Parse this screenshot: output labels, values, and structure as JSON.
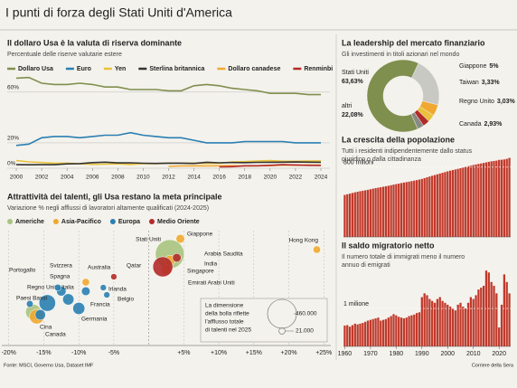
{
  "title": "I punti di forza degli Stati Uniti d'America",
  "source": "Fonte: MSCI, Governo Usa, Dataset IMF",
  "publisher": "Corriere della Sera",
  "chart_data": [
    {
      "type": "line",
      "title": "Il dollaro Usa è la valuta di riserva dominante",
      "subtitle": "Percentuale delle riserve valutarie estere",
      "x": [
        2000,
        2001,
        2002,
        2003,
        2004,
        2005,
        2006,
        2007,
        2008,
        2009,
        2010,
        2011,
        2012,
        2013,
        2014,
        2015,
        2016,
        2017,
        2018,
        2019,
        2020,
        2021,
        2022,
        2023,
        2024
      ],
      "xlim": [
        2000,
        2024
      ],
      "xticks": [
        2000,
        2002,
        2004,
        2006,
        2008,
        2010,
        2012,
        2014,
        2016,
        2018,
        2020,
        2022,
        2024
      ],
      "ylim": [
        0,
        72
      ],
      "yticks": [
        {
          "value": 0,
          "label": "0%"
        },
        {
          "value": 20,
          "label": "20%"
        },
        {
          "value": 60,
          "label": "60%"
        }
      ],
      "grid": true,
      "series": [
        {
          "name": "Dollaro Usa",
          "color": "#7f8f4e",
          "values": [
            71,
            71.5,
            67,
            66,
            66,
            67,
            66,
            64,
            64,
            62,
            62,
            62,
            61,
            61,
            65,
            66,
            65,
            63,
            62,
            61,
            59,
            59,
            59,
            58,
            58
          ]
        },
        {
          "name": "Euro",
          "color": "#2a7fb3",
          "values": [
            18,
            19,
            24,
            25,
            25,
            24,
            25,
            26,
            26,
            28,
            26,
            25,
            24,
            24,
            22,
            20,
            20,
            20,
            21,
            21,
            21,
            21,
            20,
            20,
            20
          ]
        },
        {
          "name": "Yen",
          "color": "#e8c23a",
          "values": [
            6,
            5,
            4.5,
            4,
            4,
            3.6,
            3.1,
            3.2,
            3.5,
            2.9,
            3.7,
            3.6,
            4,
            4,
            4,
            3.8,
            4,
            4.9,
            5.2,
            5.6,
            6,
            5.5,
            5.5,
            5.7,
            5.8
          ]
        },
        {
          "name": "Sterlina britannica",
          "color": "#333333",
          "values": [
            2.8,
            2.7,
            2.8,
            2.8,
            3.4,
            3.6,
            4.4,
            4.8,
            4.2,
            4.3,
            3.9,
            3.8,
            4,
            4,
            3.8,
            4.7,
            4.3,
            4.5,
            4.4,
            4.6,
            4.7,
            4.8,
            4.9,
            4.8,
            4.7
          ]
        },
        {
          "name": "Dollaro canadese",
          "color": "#f0a830",
          "values": [
            null,
            null,
            null,
            null,
            null,
            null,
            null,
            null,
            null,
            null,
            null,
            null,
            1.4,
            1.8,
            1.9,
            1.8,
            1.9,
            2,
            1.8,
            1.9,
            2.1,
            2.4,
            2.4,
            2.6,
            2.5
          ]
        },
        {
          "name": "Renminbi",
          "color": "#b32a2a",
          "values": [
            null,
            null,
            null,
            null,
            null,
            null,
            null,
            null,
            null,
            null,
            null,
            null,
            null,
            null,
            null,
            null,
            1.1,
            1.2,
            1.9,
            1.9,
            2.3,
            2.8,
            2.6,
            2.3,
            2.2
          ]
        }
      ]
    },
    {
      "type": "pie",
      "title": "La leadership del mercato finanziario",
      "subtitle": "Gli investimenti in titoli azionari nel mondo",
      "labels": [
        "altri",
        "Giappone",
        "Taiwan",
        "Regno Unito",
        "Canada",
        "Stati Uniti"
      ],
      "values": [
        22.08,
        5,
        3.33,
        3.03,
        2.93,
        63.63
      ],
      "value_labels": [
        "22,08%",
        "5%",
        "3,33%",
        "3,03%",
        "2,93%",
        "63,63%"
      ],
      "colors": [
        "#c9c9c4",
        "#f0a830",
        "#e8c23a",
        "#b32a2a",
        "#8a8a84",
        "#7f8f4e"
      ]
    },
    {
      "type": "bubble",
      "title": "Attrattività dei talenti, gli Usa restano la meta principale",
      "subtitle": "Variazione % negli afflussi di lavoratori altamente qualificati (2024-2025)",
      "xlim": [
        -21,
        26
      ],
      "xticks": [
        {
          "value": -20,
          "label": "-20%"
        },
        {
          "value": -15,
          "label": "-15%"
        },
        {
          "value": -10,
          "label": "-10%"
        },
        {
          "value": -5,
          "label": "-5%"
        },
        {
          "value": 5,
          "label": "+5%"
        },
        {
          "value": 10,
          "label": "+10%"
        },
        {
          "value": 15,
          "label": "+15%"
        },
        {
          "value": 20,
          "label": "+20%"
        },
        {
          "value": 25,
          "label": "+25%"
        }
      ],
      "series": [
        {
          "name": "Americhe",
          "color": "#a9c47f",
          "labels": [
            "Stati Uniti",
            "Canada"
          ],
          "values": [
            3,
            -16.5
          ],
          "sizes": [
            460000,
            130000
          ]
        },
        {
          "name": "Asia-Pacifico",
          "color": "#f0a830",
          "labels": [
            "Giappone",
            "India",
            "Singapore",
            "Cina",
            "Australia",
            "Hong Kong"
          ],
          "values": [
            4.5,
            3,
            2.5,
            -16,
            -9,
            24
          ],
          "sizes": [
            40000,
            60000,
            60000,
            120000,
            30000,
            30000
          ]
        },
        {
          "name": "Europa",
          "color": "#2a7fb3",
          "labels": [
            "Regno Unito",
            "Paesi Bassi",
            "Portogallo",
            "Spagna",
            "Svizzera",
            "Italia",
            "Germania",
            "Francia",
            "Irlanda",
            "Belgio"
          ],
          "values": [
            -14.5,
            -15.5,
            -17,
            -12.5,
            -13,
            -11.5,
            -10,
            -9,
            -6.5,
            -6
          ],
          "sizes": [
            150000,
            60000,
            25000,
            50000,
            25000,
            70000,
            80000,
            40000,
            21000,
            21000
          ]
        },
        {
          "name": "Medio Oriente",
          "color": "#b32a2a",
          "labels": [
            "Arabia Saudita",
            "Emirati Arabi Uniti",
            "Qatar"
          ],
          "values": [
            4,
            2,
            -5
          ],
          "sizes": [
            40000,
            220000,
            21000
          ]
        }
      ],
      "size_legend_title": [
        "La dimensione",
        "della bolla riflette",
        "l'afflusso totale",
        "di talenti nel 2025"
      ],
      "size_legend": [
        {
          "value": 460000,
          "label": "460.000"
        },
        {
          "value": 21000,
          "label": "21.000"
        }
      ]
    },
    {
      "type": "bar",
      "title": "La crescita della popolazione",
      "subtitle": [
        "Tutti i residenti indipendentemente dallo status",
        "giuridico o dalla cittadinanza"
      ],
      "color": "#c0392b",
      "x": [
        1960,
        1961,
        1962,
        1963,
        1964,
        1965,
        1966,
        1967,
        1968,
        1969,
        1970,
        1971,
        1972,
        1973,
        1974,
        1975,
        1976,
        1977,
        1978,
        1979,
        1980,
        1981,
        1982,
        1983,
        1984,
        1985,
        1986,
        1987,
        1988,
        1989,
        1990,
        1991,
        1992,
        1993,
        1994,
        1995,
        1996,
        1997,
        1998,
        1999,
        2000,
        2001,
        2002,
        2003,
        2004,
        2005,
        2006,
        2007,
        2008,
        2009,
        2010,
        2011,
        2012,
        2013,
        2014,
        2015,
        2016,
        2017,
        2018,
        2019,
        2020,
        2021,
        2022,
        2023,
        2024
      ],
      "values": [
        180.7,
        183.7,
        186.5,
        189.2,
        191.9,
        194.3,
        196.6,
        198.7,
        200.7,
        202.7,
        205.1,
        207.7,
        209.9,
        211.9,
        213.9,
        216.0,
        218.0,
        220.2,
        222.6,
        225.1,
        227.2,
        229.5,
        231.7,
        233.8,
        235.8,
        237.9,
        240.1,
        242.3,
        244.5,
        246.8,
        249.6,
        253.0,
        256.5,
        259.9,
        263.1,
        266.3,
        269.4,
        272.7,
        275.9,
        279.0,
        282.2,
        285.0,
        287.6,
        290.1,
        292.8,
        295.5,
        298.4,
        301.2,
        304.1,
        306.8,
        309.3,
        311.6,
        313.9,
        316.1,
        318.4,
        320.7,
        323.1,
        325.1,
        326.8,
        328.3,
        331.5,
        332.0,
        333.3,
        335.9,
        340.1
      ],
      "xlim": [
        1960,
        2024
      ],
      "ylim": [
        0,
        350
      ],
      "yticks": [
        {
          "value": 300,
          "label": "300 milioni"
        }
      ],
      "grid": true
    },
    {
      "type": "bar",
      "title": "Il saldo migratorio netto",
      "subtitle": [
        "Il numero totale di immigrati meno il numero",
        "annuo di emigrati"
      ],
      "color": "#c0392b",
      "x": [
        1960,
        1961,
        1962,
        1963,
        1964,
        1965,
        1966,
        1967,
        1968,
        1969,
        1970,
        1971,
        1972,
        1973,
        1974,
        1975,
        1976,
        1977,
        1978,
        1979,
        1980,
        1981,
        1982,
        1983,
        1984,
        1985,
        1986,
        1987,
        1988,
        1989,
        1990,
        1991,
        1992,
        1993,
        1994,
        1995,
        1996,
        1997,
        1998,
        1999,
        2000,
        2001,
        2002,
        2003,
        2004,
        2005,
        2006,
        2007,
        2008,
        2009,
        2010,
        2011,
        2012,
        2013,
        2014,
        2015,
        2016,
        2017,
        2018,
        2019,
        2020,
        2021,
        2022,
        2023,
        2024
      ],
      "values": [
        550000,
        560000,
        520000,
        560000,
        600000,
        580000,
        600000,
        620000,
        650000,
        680000,
        700000,
        720000,
        740000,
        760000,
        680000,
        700000,
        720000,
        760000,
        800000,
        850000,
        820000,
        780000,
        760000,
        740000,
        760000,
        800000,
        820000,
        840000,
        880000,
        900000,
        1300000,
        1400000,
        1350000,
        1250000,
        1200000,
        1150000,
        1250000,
        1300000,
        1200000,
        1150000,
        1100000,
        1050000,
        1000000,
        950000,
        1100000,
        1150000,
        1050000,
        1000000,
        1150000,
        1300000,
        1250000,
        1350000,
        1500000,
        1550000,
        1600000,
        2000000,
        1950000,
        1700000,
        1600000,
        1400000,
        500000,
        1100000,
        1900000,
        1700000,
        1400000
      ],
      "xlim": [
        1960,
        2024
      ],
      "xticks": [
        1960,
        1970,
        1980,
        1990,
        2000,
        2010,
        2020
      ],
      "ylim": [
        0,
        2100000
      ],
      "yticks": [
        {
          "value": 1000000,
          "label": "1 milione"
        }
      ],
      "grid": true
    }
  ]
}
